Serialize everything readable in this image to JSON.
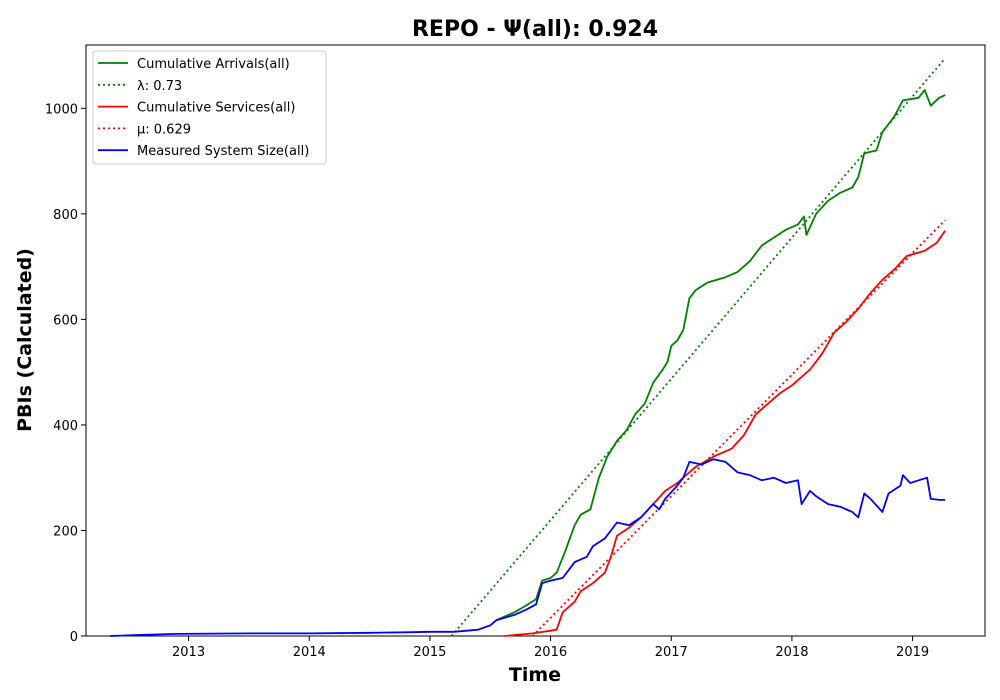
{
  "chart_data": {
    "type": "line",
    "title": "REPO -  Ψ(all): 0.924",
    "xlabel": "Time",
    "ylabel": "PBIs (Calculated)",
    "xlim": [
      2012.15,
      2019.6
    ],
    "ylim": [
      0,
      1120
    ],
    "xticks": [
      2013,
      2014,
      2015,
      2016,
      2017,
      2018,
      2019
    ],
    "xtick_labels": [
      "2013",
      "2014",
      "2015",
      "2016",
      "2017",
      "2018",
      "2019"
    ],
    "yticks": [
      0,
      200,
      400,
      600,
      800,
      1000
    ],
    "ytick_labels": [
      "0",
      "200",
      "400",
      "600",
      "800",
      "1000"
    ],
    "grid": false,
    "legend_position": "top-left",
    "series": [
      {
        "name": "Cumulative Arrivals(all)",
        "color": "#008000",
        "style": "solid",
        "points": [
          [
            2015.55,
            30
          ],
          [
            2015.7,
            45
          ],
          [
            2015.8,
            58
          ],
          [
            2015.88,
            70
          ],
          [
            2015.93,
            105
          ],
          [
            2016.0,
            110
          ],
          [
            2016.05,
            120
          ],
          [
            2016.12,
            160
          ],
          [
            2016.2,
            210
          ],
          [
            2016.25,
            230
          ],
          [
            2016.33,
            240
          ],
          [
            2016.4,
            300
          ],
          [
            2016.47,
            340
          ],
          [
            2016.55,
            370
          ],
          [
            2016.63,
            390
          ],
          [
            2016.7,
            420
          ],
          [
            2016.78,
            440
          ],
          [
            2016.85,
            480
          ],
          [
            2016.93,
            505
          ],
          [
            2016.97,
            520
          ],
          [
            2017.0,
            550
          ],
          [
            2017.05,
            560
          ],
          [
            2017.1,
            580
          ],
          [
            2017.15,
            640
          ],
          [
            2017.2,
            655
          ],
          [
            2017.3,
            670
          ],
          [
            2017.45,
            680
          ],
          [
            2017.55,
            690
          ],
          [
            2017.65,
            710
          ],
          [
            2017.75,
            740
          ],
          [
            2017.85,
            755
          ],
          [
            2017.95,
            770
          ],
          [
            2018.05,
            780
          ],
          [
            2018.1,
            795
          ],
          [
            2018.12,
            760
          ],
          [
            2018.2,
            800
          ],
          [
            2018.3,
            825
          ],
          [
            2018.4,
            840
          ],
          [
            2018.5,
            850
          ],
          [
            2018.55,
            870
          ],
          [
            2018.6,
            915
          ],
          [
            2018.7,
            920
          ],
          [
            2018.75,
            955
          ],
          [
            2018.85,
            985
          ],
          [
            2018.92,
            1015
          ],
          [
            2019.05,
            1020
          ],
          [
            2019.1,
            1035
          ],
          [
            2019.15,
            1005
          ],
          [
            2019.22,
            1020
          ],
          [
            2019.27,
            1025
          ]
        ]
      },
      {
        "name": "λ: 0.73",
        "color": "#008000",
        "style": "dotted",
        "points": [
          [
            2015.18,
            0
          ],
          [
            2019.27,
            1095
          ]
        ]
      },
      {
        "name": "Cumulative Services(all)",
        "color": "#ff0000",
        "style": "solid",
        "points": [
          [
            2015.62,
            0
          ],
          [
            2015.85,
            5
          ],
          [
            2016.0,
            10
          ],
          [
            2016.05,
            12
          ],
          [
            2016.1,
            45
          ],
          [
            2016.2,
            65
          ],
          [
            2016.25,
            85
          ],
          [
            2016.35,
            100
          ],
          [
            2016.45,
            120
          ],
          [
            2016.5,
            150
          ],
          [
            2016.55,
            190
          ],
          [
            2016.65,
            205
          ],
          [
            2016.75,
            225
          ],
          [
            2016.85,
            250
          ],
          [
            2016.95,
            275
          ],
          [
            2017.05,
            290
          ],
          [
            2017.2,
            320
          ],
          [
            2017.35,
            340
          ],
          [
            2017.5,
            355
          ],
          [
            2017.6,
            380
          ],
          [
            2017.7,
            420
          ],
          [
            2017.8,
            440
          ],
          [
            2017.9,
            460
          ],
          [
            2018.0,
            475
          ],
          [
            2018.05,
            485
          ],
          [
            2018.15,
            505
          ],
          [
            2018.25,
            535
          ],
          [
            2018.35,
            575
          ],
          [
            2018.45,
            595
          ],
          [
            2018.55,
            620
          ],
          [
            2018.65,
            650
          ],
          [
            2018.75,
            675
          ],
          [
            2018.85,
            695
          ],
          [
            2018.95,
            720
          ],
          [
            2019.1,
            730
          ],
          [
            2019.2,
            745
          ],
          [
            2019.27,
            768
          ]
        ]
      },
      {
        "name": "μ: 0.629",
        "color": "#ff0000",
        "style": "dotted",
        "points": [
          [
            2015.85,
            0
          ],
          [
            2019.27,
            788
          ]
        ]
      },
      {
        "name": "Measured System Size(all)",
        "color": "#0000ff",
        "style": "solid",
        "points": [
          [
            2012.35,
            0
          ],
          [
            2012.6,
            2
          ],
          [
            2012.9,
            4
          ],
          [
            2013.5,
            5
          ],
          [
            2014.0,
            5
          ],
          [
            2014.5,
            6
          ],
          [
            2014.8,
            7
          ],
          [
            2015.0,
            8
          ],
          [
            2015.2,
            8
          ],
          [
            2015.4,
            12
          ],
          [
            2015.5,
            20
          ],
          [
            2015.55,
            30
          ],
          [
            2015.7,
            40
          ],
          [
            2015.8,
            50
          ],
          [
            2015.88,
            60
          ],
          [
            2015.93,
            100
          ],
          [
            2016.0,
            105
          ],
          [
            2016.1,
            110
          ],
          [
            2016.2,
            140
          ],
          [
            2016.3,
            150
          ],
          [
            2016.35,
            170
          ],
          [
            2016.45,
            185
          ],
          [
            2016.5,
            200
          ],
          [
            2016.55,
            215
          ],
          [
            2016.65,
            210
          ],
          [
            2016.75,
            225
          ],
          [
            2016.85,
            250
          ],
          [
            2016.9,
            240
          ],
          [
            2016.95,
            260
          ],
          [
            2017.05,
            285
          ],
          [
            2017.1,
            300
          ],
          [
            2017.15,
            330
          ],
          [
            2017.25,
            325
          ],
          [
            2017.35,
            335
          ],
          [
            2017.45,
            330
          ],
          [
            2017.55,
            310
          ],
          [
            2017.65,
            305
          ],
          [
            2017.75,
            295
          ],
          [
            2017.85,
            300
          ],
          [
            2017.95,
            290
          ],
          [
            2018.05,
            295
          ],
          [
            2018.08,
            250
          ],
          [
            2018.15,
            275
          ],
          [
            2018.2,
            265
          ],
          [
            2018.3,
            250
          ],
          [
            2018.4,
            245
          ],
          [
            2018.5,
            235
          ],
          [
            2018.55,
            225
          ],
          [
            2018.6,
            270
          ],
          [
            2018.65,
            260
          ],
          [
            2018.75,
            235
          ],
          [
            2018.8,
            270
          ],
          [
            2018.9,
            285
          ],
          [
            2018.92,
            305
          ],
          [
            2018.98,
            290
          ],
          [
            2019.05,
            295
          ],
          [
            2019.12,
            300
          ],
          [
            2019.15,
            260
          ],
          [
            2019.22,
            258
          ],
          [
            2019.27,
            258
          ]
        ]
      }
    ]
  }
}
